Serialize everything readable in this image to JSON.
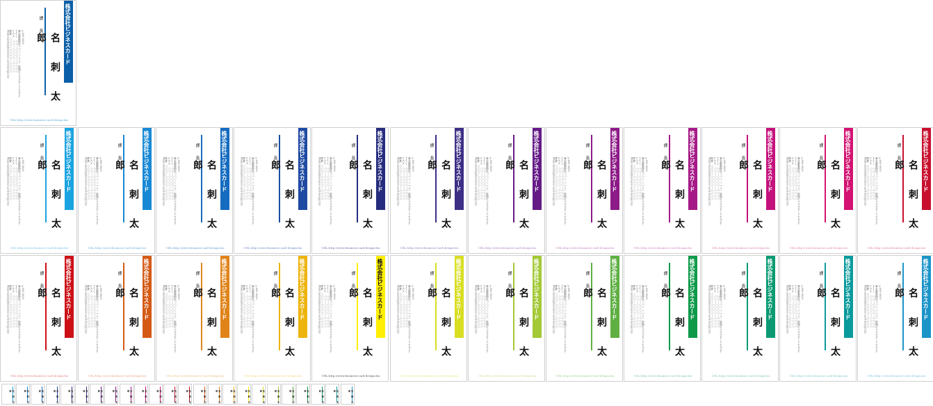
{
  "card": {
    "company": "株式会社ビジネスカード",
    "title": "課　長",
    "name": "名　刺　太　郎",
    "info_lines": [
      "〒000-0000",
      "東京都新宿区○○一－二－三　新宿ビジネスカードビル１Ｆ",
      "ＴＥＬ　○○－○○○○－○○○○",
      "ＦＡＸ　○○－○○○○－○○○○",
      "携帯　○○○－○○○○－○○○○",
      "Mail:meishi@business-card-design.biz"
    ],
    "url": "URL:http://www.business-card-design.biz"
  },
  "featured": {
    "color": "#0b5fa8",
    "url_color": "#5aa8d8"
  },
  "row1": [
    {
      "color": "#1aa3e0",
      "url_color": "#77c4ea"
    },
    {
      "color": "#1888d4",
      "url_color": "#6ab0e0"
    },
    {
      "color": "#146bbf",
      "url_color": "#5f98d1"
    },
    {
      "color": "#1e4aa2",
      "url_color": "#6b87c3"
    },
    {
      "color": "#252c7d",
      "url_color": "#6b6fa8"
    },
    {
      "color": "#3d2e86",
      "url_color": "#8b80b8"
    },
    {
      "color": "#641a86",
      "url_color": "#a67fc0"
    },
    {
      "color": "#8c1a87",
      "url_color": "#c07fbd"
    },
    {
      "color": "#a61a88",
      "url_color": "#cf7fbd"
    },
    {
      "color": "#c4127d",
      "url_color": "#de7fb5"
    },
    {
      "color": "#d31272",
      "url_color": "#e47faf"
    },
    {
      "color": "#c80f2e",
      "url_color": "#df7f8e"
    }
  ],
  "row2": [
    {
      "color": "#cc1016",
      "url_color": "#e27f80"
    },
    {
      "color": "#d45a16",
      "url_color": "#e8a27f"
    },
    {
      "color": "#e0841a",
      "url_color": "#efbd80"
    },
    {
      "color": "#edb40e",
      "url_color": "#f5d57f"
    },
    {
      "color": "#ffee00",
      "url_color": "#555555"
    },
    {
      "color": "#d8de22",
      "url_color": "#e6e88a"
    },
    {
      "color": "#a3c936",
      "url_color": "#c8dd8d"
    },
    {
      "color": "#5faf43",
      "url_color": "#9ccf8e"
    },
    {
      "color": "#0f9a4a",
      "url_color": "#7fc79c"
    },
    {
      "color": "#0b9a72",
      "url_color": "#7fc6b3"
    },
    {
      "color": "#0a9a9c",
      "url_color": "#7fc7c8"
    },
    {
      "color": "#1b94c8",
      "url_color": "#7fc1df"
    }
  ],
  "thumbs": [
    "#1aa3e0",
    "#1888d4",
    "#146bbf",
    "#1e4aa2",
    "#252c7d",
    "#3d2e86",
    "#641a86",
    "#8c1a87",
    "#a61a88",
    "#c4127d",
    "#d31272",
    "#c80f2e",
    "#cc1016",
    "#d45a16",
    "#e0841a",
    "#edb40e",
    "#ffee00",
    "#d8de22",
    "#a3c936",
    "#5faf43",
    "#0f9a4a",
    "#0b9a72",
    "#0a9a9c",
    "#1b94c8"
  ]
}
